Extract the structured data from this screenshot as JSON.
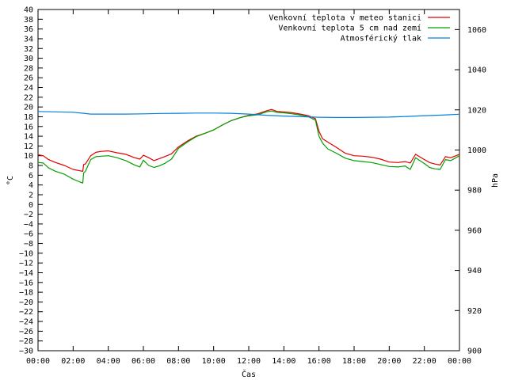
{
  "chart_data": {
    "type": "line",
    "title": "",
    "xlabel": "Čas",
    "ylabel": "°C",
    "y2label": "hPa",
    "xlim": [
      0,
      24
    ],
    "ylim": [
      -30,
      40
    ],
    "y2lim": [
      900,
      1070
    ],
    "x_ticks": [
      "00:00",
      "02:00",
      "04:00",
      "06:00",
      "08:00",
      "10:00",
      "12:00",
      "14:00",
      "16:00",
      "18:00",
      "20:00",
      "22:00",
      "00:00"
    ],
    "y_ticks": [
      -30,
      -28,
      -26,
      -24,
      -22,
      -20,
      -18,
      -16,
      -14,
      -12,
      -10,
      -8,
      -6,
      -4,
      -2,
      0,
      2,
      4,
      6,
      8,
      10,
      12,
      14,
      16,
      18,
      20,
      22,
      24,
      26,
      28,
      30,
      32,
      34,
      36,
      38,
      40
    ],
    "y2_ticks": [
      900,
      920,
      940,
      960,
      980,
      1000,
      1020,
      1040,
      1060
    ],
    "grid": false,
    "legend_position": "top-right",
    "series": [
      {
        "name": "Venkovní teplota v meteo stanici",
        "axis": "y",
        "color": "#e00000",
        "x": [
          0,
          0.3,
          0.6,
          1.0,
          1.5,
          2.0,
          2.4,
          2.55,
          2.6,
          2.7,
          3.0,
          3.3,
          3.6,
          4.0,
          4.5,
          5.0,
          5.5,
          5.8,
          6.0,
          6.3,
          6.6,
          6.9,
          7.2,
          7.6,
          8.0,
          8.5,
          9.0,
          9.5,
          10.0,
          10.5,
          11.0,
          11.5,
          12.0,
          12.5,
          13.0,
          13.3,
          13.6,
          14.0,
          14.5,
          15.0,
          15.4,
          15.8,
          16.0,
          16.2,
          16.5,
          17.0,
          17.5,
          18.0,
          18.5,
          19.0,
          19.5,
          20.0,
          20.5,
          20.9,
          21.2,
          21.5,
          22.0,
          22.3,
          22.6,
          22.9,
          23.2,
          23.5,
          23.8,
          24.0
        ],
        "y": [
          10.2,
          10.0,
          9.2,
          8.6,
          8.0,
          7.2,
          6.9,
          6.8,
          8.2,
          8.3,
          10.0,
          10.7,
          10.9,
          11.0,
          10.6,
          10.3,
          9.6,
          9.3,
          10.1,
          9.6,
          9.0,
          9.4,
          9.8,
          10.4,
          11.8,
          13.0,
          14.0,
          14.6,
          15.3,
          16.3,
          17.2,
          17.8,
          18.3,
          18.6,
          19.2,
          19.5,
          19.1,
          19.0,
          18.8,
          18.5,
          18.2,
          17.6,
          15.0,
          13.5,
          12.8,
          11.7,
          10.5,
          10.0,
          9.9,
          9.7,
          9.3,
          8.7,
          8.6,
          8.8,
          8.5,
          10.3,
          9.2,
          8.6,
          8.3,
          8.1,
          9.8,
          9.6,
          10.0,
          10.3
        ]
      },
      {
        "name": "Venkovní teplota 5 cm nad zemí",
        "axis": "y",
        "color": "#00a000",
        "x": [
          0,
          0.3,
          0.6,
          1.0,
          1.5,
          2.0,
          2.4,
          2.55,
          2.6,
          2.7,
          3.0,
          3.3,
          3.6,
          4.0,
          4.5,
          5.0,
          5.5,
          5.8,
          6.0,
          6.3,
          6.6,
          6.9,
          7.2,
          7.6,
          8.0,
          8.5,
          9.0,
          9.5,
          10.0,
          10.5,
          11.0,
          11.5,
          12.0,
          12.5,
          13.0,
          13.3,
          13.6,
          14.0,
          14.5,
          15.0,
          15.4,
          15.8,
          16.0,
          16.2,
          16.5,
          17.0,
          17.5,
          18.0,
          18.5,
          19.0,
          19.5,
          20.0,
          20.5,
          20.9,
          21.2,
          21.5,
          22.0,
          22.3,
          22.6,
          22.9,
          23.2,
          23.5,
          23.8,
          24.0
        ],
        "y": [
          8.6,
          8.5,
          7.5,
          6.8,
          6.2,
          5.2,
          4.6,
          4.4,
          6.5,
          6.8,
          9.2,
          9.8,
          9.9,
          10.0,
          9.6,
          9.0,
          8.1,
          7.7,
          9.1,
          8.0,
          7.6,
          7.9,
          8.4,
          9.3,
          11.5,
          12.8,
          13.9,
          14.6,
          15.3,
          16.3,
          17.2,
          17.8,
          18.2,
          18.4,
          19.0,
          19.2,
          18.9,
          18.8,
          18.6,
          18.3,
          18.0,
          17.3,
          14.0,
          12.6,
          11.4,
          10.5,
          9.5,
          9.0,
          8.8,
          8.6,
          8.2,
          7.8,
          7.7,
          7.9,
          7.2,
          9.6,
          8.4,
          7.6,
          7.3,
          7.2,
          9.2,
          9.0,
          9.6,
          10.0
        ]
      },
      {
        "name": "Atmosférický tlak",
        "axis": "y2",
        "color": "#0080e0",
        "x": [
          0,
          1.0,
          2.0,
          2.6,
          3.0,
          4.0,
          5.0,
          6.0,
          7.0,
          8.0,
          9.0,
          10.0,
          11.0,
          12.0,
          13.0,
          14.0,
          15.0,
          16.0,
          17.0,
          18.0,
          19.0,
          20.0,
          21.0,
          22.0,
          23.0,
          24.0
        ],
        "y": [
          1019.2,
          1019.0,
          1018.8,
          1018.3,
          1017.9,
          1017.9,
          1017.9,
          1018.0,
          1018.2,
          1018.3,
          1018.4,
          1018.4,
          1018.3,
          1017.9,
          1017.3,
          1016.9,
          1016.6,
          1016.3,
          1016.2,
          1016.2,
          1016.3,
          1016.4,
          1016.7,
          1017.1,
          1017.4,
          1017.8
        ]
      }
    ]
  }
}
